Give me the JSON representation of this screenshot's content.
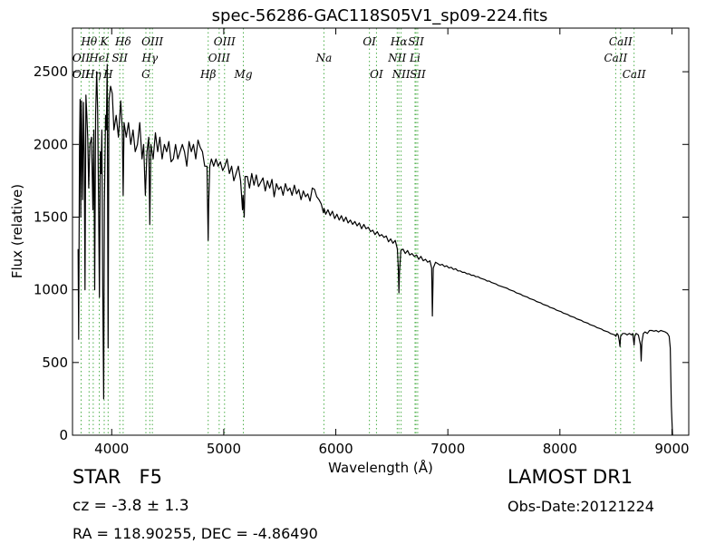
{
  "chart_data": {
    "type": "line",
    "title": "spec-56286-GAC118S05V1_sp09-224.fits",
    "xlabel": "Wavelength (Å)",
    "ylabel": "Flux (relative)",
    "xlim": [
      3650,
      9150
    ],
    "ylim": [
      0,
      2800
    ],
    "xticks": [
      {
        "v": 4000,
        "label": "4000"
      },
      {
        "v": 5000,
        "label": "5000"
      },
      {
        "v": 6000,
        "label": "6000"
      },
      {
        "v": 7000,
        "label": "7000"
      },
      {
        "v": 8000,
        "label": "8000"
      },
      {
        "v": 9000,
        "label": "9000"
      }
    ],
    "yticks": [
      {
        "v": 0,
        "label": "0"
      },
      {
        "v": 500,
        "label": "500"
      },
      {
        "v": 1000,
        "label": "1000"
      },
      {
        "v": 1500,
        "label": "1500"
      },
      {
        "v": 2000,
        "label": "2000"
      },
      {
        "v": 2500,
        "label": "2500"
      }
    ],
    "grid": false,
    "line_color": "#000000",
    "marker_color": "#4daf4a",
    "spectrum": [
      [
        3700,
        1280
      ],
      [
        3705,
        660
      ],
      [
        3712,
        1950
      ],
      [
        3718,
        2310
      ],
      [
        3724,
        1500
      ],
      [
        3730,
        2300
      ],
      [
        3740,
        1620
      ],
      [
        3748,
        2290
      ],
      [
        3755,
        1900
      ],
      [
        3762,
        1000
      ],
      [
        3770,
        2340
      ],
      [
        3778,
        2200
      ],
      [
        3786,
        2050
      ],
      [
        3795,
        1700
      ],
      [
        3805,
        2000
      ],
      [
        3812,
        2020
      ],
      [
        3820,
        2050
      ],
      [
        3832,
        1550
      ],
      [
        3840,
        2100
      ],
      [
        3848,
        1000
      ],
      [
        3856,
        2200
      ],
      [
        3866,
        2500
      ],
      [
        3874,
        2250
      ],
      [
        3882,
        1650
      ],
      [
        3890,
        950
      ],
      [
        3898,
        1950
      ],
      [
        3905,
        1800
      ],
      [
        3912,
        2100
      ],
      [
        3920,
        1000
      ],
      [
        3928,
        250
      ],
      [
        3935,
        1600
      ],
      [
        3945,
        2200
      ],
      [
        3952,
        2100
      ],
      [
        3960,
        2550
      ],
      [
        3968,
        600
      ],
      [
        3975,
        2300
      ],
      [
        3990,
        2400
      ],
      [
        4005,
        2350
      ],
      [
        4020,
        2100
      ],
      [
        4040,
        2200
      ],
      [
        4060,
        2050
      ],
      [
        4080,
        2300
      ],
      [
        4095,
        2100
      ],
      [
        4102,
        1650
      ],
      [
        4110,
        2150
      ],
      [
        4130,
        2050
      ],
      [
        4150,
        2150
      ],
      [
        4170,
        2000
      ],
      [
        4190,
        2100
      ],
      [
        4210,
        1950
      ],
      [
        4230,
        2000
      ],
      [
        4250,
        2150
      ],
      [
        4270,
        1900
      ],
      [
        4285,
        2000
      ],
      [
        4300,
        1650
      ],
      [
        4315,
        1950
      ],
      [
        4330,
        2050
      ],
      [
        4340,
        1450
      ],
      [
        4350,
        2000
      ],
      [
        4370,
        1900
      ],
      [
        4390,
        2080
      ],
      [
        4410,
        1950
      ],
      [
        4430,
        2050
      ],
      [
        4450,
        1900
      ],
      [
        4470,
        2000
      ],
      [
        4490,
        1950
      ],
      [
        4510,
        2020
      ],
      [
        4530,
        1880
      ],
      [
        4550,
        1900
      ],
      [
        4570,
        2000
      ],
      [
        4590,
        1900
      ],
      [
        4610,
        1950
      ],
      [
        4630,
        2000
      ],
      [
        4650,
        1950
      ],
      [
        4670,
        1850
      ],
      [
        4690,
        2020
      ],
      [
        4710,
        1950
      ],
      [
        4730,
        2000
      ],
      [
        4750,
        1900
      ],
      [
        4770,
        2030
      ],
      [
        4790,
        1980
      ],
      [
        4810,
        1950
      ],
      [
        4830,
        1850
      ],
      [
        4850,
        1850
      ],
      [
        4855,
        1600
      ],
      [
        4861,
        1340
      ],
      [
        4866,
        1600
      ],
      [
        4875,
        1850
      ],
      [
        4890,
        1900
      ],
      [
        4910,
        1850
      ],
      [
        4930,
        1900
      ],
      [
        4950,
        1850
      ],
      [
        4970,
        1880
      ],
      [
        4990,
        1820
      ],
      [
        5010,
        1850
      ],
      [
        5030,
        1900
      ],
      [
        5050,
        1800
      ],
      [
        5070,
        1850
      ],
      [
        5090,
        1750
      ],
      [
        5110,
        1800
      ],
      [
        5130,
        1850
      ],
      [
        5150,
        1750
      ],
      [
        5167,
        1550
      ],
      [
        5172,
        1650
      ],
      [
        5183,
        1500
      ],
      [
        5190,
        1780
      ],
      [
        5210,
        1780
      ],
      [
        5230,
        1700
      ],
      [
        5250,
        1800
      ],
      [
        5270,
        1720
      ],
      [
        5290,
        1790
      ],
      [
        5310,
        1710
      ],
      [
        5330,
        1740
      ],
      [
        5350,
        1770
      ],
      [
        5370,
        1680
      ],
      [
        5390,
        1750
      ],
      [
        5410,
        1700
      ],
      [
        5430,
        1760
      ],
      [
        5450,
        1640
      ],
      [
        5470,
        1730
      ],
      [
        5490,
        1690
      ],
      [
        5510,
        1710
      ],
      [
        5530,
        1650
      ],
      [
        5550,
        1730
      ],
      [
        5570,
        1680
      ],
      [
        5590,
        1700
      ],
      [
        5610,
        1650
      ],
      [
        5630,
        1720
      ],
      [
        5650,
        1660
      ],
      [
        5670,
        1690
      ],
      [
        5690,
        1620
      ],
      [
        5710,
        1680
      ],
      [
        5730,
        1640
      ],
      [
        5750,
        1660
      ],
      [
        5770,
        1610
      ],
      [
        5790,
        1700
      ],
      [
        5810,
        1690
      ],
      [
        5830,
        1640
      ],
      [
        5850,
        1620
      ],
      [
        5870,
        1590
      ],
      [
        5890,
        1530
      ],
      [
        5895,
        1560
      ],
      [
        5910,
        1520
      ],
      [
        5930,
        1550
      ],
      [
        5950,
        1510
      ],
      [
        5970,
        1540
      ],
      [
        5990,
        1490
      ],
      [
        6010,
        1520
      ],
      [
        6030,
        1480
      ],
      [
        6050,
        1510
      ],
      [
        6070,
        1470
      ],
      [
        6090,
        1500
      ],
      [
        6110,
        1460
      ],
      [
        6130,
        1480
      ],
      [
        6150,
        1450
      ],
      [
        6170,
        1470
      ],
      [
        6190,
        1440
      ],
      [
        6210,
        1460
      ],
      [
        6230,
        1420
      ],
      [
        6250,
        1450
      ],
      [
        6270,
        1420
      ],
      [
        6290,
        1430
      ],
      [
        6310,
        1400
      ],
      [
        6330,
        1410
      ],
      [
        6350,
        1380
      ],
      [
        6370,
        1400
      ],
      [
        6390,
        1370
      ],
      [
        6410,
        1380
      ],
      [
        6430,
        1360
      ],
      [
        6450,
        1370
      ],
      [
        6470,
        1330
      ],
      [
        6490,
        1350
      ],
      [
        6510,
        1320
      ],
      [
        6530,
        1340
      ],
      [
        6550,
        1280
      ],
      [
        6558,
        1150
      ],
      [
        6563,
        980
      ],
      [
        6568,
        1120
      ],
      [
        6580,
        1270
      ],
      [
        6600,
        1280
      ],
      [
        6620,
        1250
      ],
      [
        6640,
        1270
      ],
      [
        6660,
        1240
      ],
      [
        6680,
        1250
      ],
      [
        6700,
        1230
      ],
      [
        6720,
        1240
      ],
      [
        6740,
        1210
      ],
      [
        6760,
        1230
      ],
      [
        6780,
        1200
      ],
      [
        6800,
        1210
      ],
      [
        6820,
        1190
      ],
      [
        6840,
        1200
      ],
      [
        6855,
        1150
      ],
      [
        6862,
        820
      ],
      [
        6870,
        1150
      ],
      [
        6890,
        1190
      ],
      [
        6910,
        1180
      ],
      [
        6930,
        1170
      ],
      [
        6950,
        1175
      ],
      [
        6970,
        1160
      ],
      [
        6990,
        1165
      ],
      [
        7010,
        1150
      ],
      [
        7030,
        1155
      ],
      [
        7050,
        1140
      ],
      [
        7070,
        1145
      ],
      [
        7090,
        1130
      ],
      [
        7110,
        1130
      ],
      [
        7130,
        1120
      ],
      [
        7150,
        1120
      ],
      [
        7170,
        1110
      ],
      [
        7190,
        1110
      ],
      [
        7210,
        1100
      ],
      [
        7230,
        1100
      ],
      [
        7250,
        1090
      ],
      [
        7270,
        1090
      ],
      [
        7290,
        1080
      ],
      [
        7310,
        1075
      ],
      [
        7330,
        1070
      ],
      [
        7350,
        1060
      ],
      [
        7370,
        1060
      ],
      [
        7390,
        1050
      ],
      [
        7410,
        1045
      ],
      [
        7430,
        1040
      ],
      [
        7450,
        1030
      ],
      [
        7470,
        1025
      ],
      [
        7490,
        1020
      ],
      [
        7510,
        1015
      ],
      [
        7530,
        1010
      ],
      [
        7550,
        1000
      ],
      [
        7570,
        995
      ],
      [
        7590,
        990
      ],
      [
        7610,
        980
      ],
      [
        7630,
        975
      ],
      [
        7650,
        970
      ],
      [
        7670,
        960
      ],
      [
        7690,
        955
      ],
      [
        7710,
        950
      ],
      [
        7730,
        940
      ],
      [
        7750,
        935
      ],
      [
        7770,
        930
      ],
      [
        7790,
        920
      ],
      [
        7810,
        915
      ],
      [
        7830,
        910
      ],
      [
        7850,
        900
      ],
      [
        7870,
        895
      ],
      [
        7890,
        890
      ],
      [
        7910,
        880
      ],
      [
        7930,
        875
      ],
      [
        7950,
        870
      ],
      [
        7970,
        860
      ],
      [
        7990,
        855
      ],
      [
        8010,
        850
      ],
      [
        8030,
        840
      ],
      [
        8050,
        835
      ],
      [
        8070,
        830
      ],
      [
        8090,
        820
      ],
      [
        8110,
        815
      ],
      [
        8130,
        810
      ],
      [
        8150,
        800
      ],
      [
        8170,
        795
      ],
      [
        8190,
        790
      ],
      [
        8210,
        780
      ],
      [
        8230,
        775
      ],
      [
        8250,
        770
      ],
      [
        8270,
        760
      ],
      [
        8290,
        755
      ],
      [
        8310,
        750
      ],
      [
        8330,
        740
      ],
      [
        8350,
        735
      ],
      [
        8370,
        730
      ],
      [
        8390,
        720
      ],
      [
        8410,
        715
      ],
      [
        8430,
        710
      ],
      [
        8450,
        700
      ],
      [
        8470,
        695
      ],
      [
        8490,
        690
      ],
      [
        8500,
        680
      ],
      [
        8510,
        700
      ],
      [
        8520,
        690
      ],
      [
        8530,
        650
      ],
      [
        8536,
        610
      ],
      [
        8542,
        680
      ],
      [
        8560,
        700
      ],
      [
        8580,
        700
      ],
      [
        8600,
        690
      ],
      [
        8620,
        700
      ],
      [
        8640,
        690
      ],
      [
        8650,
        700
      ],
      [
        8662,
        620
      ],
      [
        8668,
        680
      ],
      [
        8680,
        700
      ],
      [
        8700,
        690
      ],
      [
        8720,
        620
      ],
      [
        8725,
        510
      ],
      [
        8732,
        640
      ],
      [
        8745,
        700
      ],
      [
        8760,
        710
      ],
      [
        8780,
        700
      ],
      [
        8800,
        720
      ],
      [
        8820,
        720
      ],
      [
        8840,
        715
      ],
      [
        8860,
        720
      ],
      [
        8880,
        710
      ],
      [
        8900,
        720
      ],
      [
        8920,
        715
      ],
      [
        8940,
        710
      ],
      [
        8960,
        700
      ],
      [
        8975,
        680
      ],
      [
        8985,
        600
      ],
      [
        8995,
        200
      ],
      [
        9005,
        0
      ]
    ],
    "lines": [
      {
        "x": 3727,
        "label": "OII",
        "row": 2
      },
      {
        "x": 3727,
        "label": "OII",
        "row": 1
      },
      {
        "x": 3798,
        "label": "Hθ",
        "row": 0
      },
      {
        "x": 3835,
        "label": "Hη",
        "row": 2
      },
      {
        "x": 3889,
        "label": "HeI",
        "row": 1
      },
      {
        "x": 3933,
        "label": "K",
        "row": 0
      },
      {
        "x": 3968,
        "label": "H",
        "row": 2
      },
      {
        "x": 4072,
        "label": "SII",
        "row": 1
      },
      {
        "x": 4102,
        "label": "Hδ",
        "row": 0
      },
      {
        "x": 4305,
        "label": "G",
        "row": 2
      },
      {
        "x": 4340,
        "label": "Hγ",
        "row": 1
      },
      {
        "x": 4363,
        "label": "OIII",
        "row": 0
      },
      {
        "x": 4861,
        "label": "Hβ",
        "row": 2
      },
      {
        "x": 4959,
        "label": "OIII",
        "row": 1
      },
      {
        "x": 5007,
        "label": "OIII",
        "row": 0
      },
      {
        "x": 5175,
        "label": "Mg",
        "row": 2
      },
      {
        "x": 5894,
        "label": "Na",
        "row": 1
      },
      {
        "x": 6300,
        "label": "OI",
        "row": 0
      },
      {
        "x": 6363,
        "label": "OI",
        "row": 2
      },
      {
        "x": 6548,
        "label": "NII",
        "row": 1
      },
      {
        "x": 6563,
        "label": "Hα",
        "row": 0
      },
      {
        "x": 6583,
        "label": "NII",
        "row": 2
      },
      {
        "x": 6707,
        "label": "Li",
        "row": 1
      },
      {
        "x": 6716,
        "label": "SII",
        "row": 0
      },
      {
        "x": 6731,
        "label": "SII",
        "row": 2
      },
      {
        "x": 8498,
        "label": "CaII",
        "row": 1
      },
      {
        "x": 8542,
        "label": "CaII",
        "row": 0
      },
      {
        "x": 8662,
        "label": "CaII",
        "row": 2
      }
    ]
  },
  "info": {
    "class_text": "STAR   F5",
    "cz_text": "cz = -3.8 ± 1.3",
    "radec_text": "RA = 118.90255, DEC = -4.86490",
    "survey_text": "LAMOST DR1",
    "obsdate_text": "Obs-Date:20121224"
  }
}
